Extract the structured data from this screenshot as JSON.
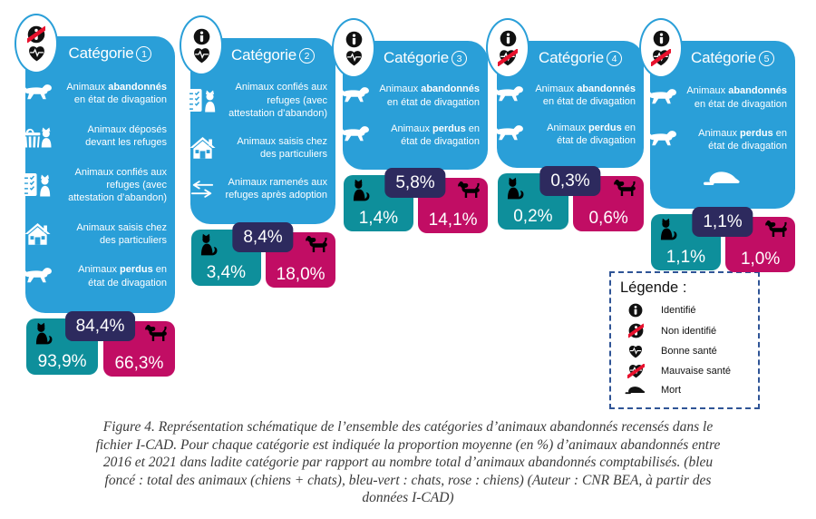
{
  "figure": {
    "caption_lines": [
      "Figure 4. Représentation schématique de l’ensemble des catégories d’animaux abandonnés recensés dans le",
      "fichier I-CAD. Pour chaque catégorie est indiquée la proportion moyenne (en %) d’animaux abandonnés entre",
      "2016 et 2021 dans ladite catégorie par rapport au nombre total d’animaux abandonnés comptabilisés. (bleu",
      "foncé : total des animaux (chiens + chats), bleu-vert : chats, rose : chiens) (Auteur : CNR BEA, à partir des",
      "données I-CAD)"
    ]
  },
  "colors": {
    "card_blue": "#2A9FD8",
    "cat_teal": "#0E8F9B",
    "dog_pink": "#C10D64",
    "total_navy": "#2D2A5E",
    "cross_red": "#E8112D",
    "legend_border": "#2F5496"
  },
  "stats": {
    "cat_icon": "sitting-cat-icon",
    "dog_icon": "dog-icon"
  },
  "legend": {
    "title": "Légende :",
    "items": [
      {
        "icon": "identified-icon",
        "label": "Identifié"
      },
      {
        "icon": "not-identified-icon",
        "label": "Non identifié"
      },
      {
        "icon": "good-health-icon",
        "label": "Bonne santé"
      },
      {
        "icon": "bad-health-icon",
        "label": "Mauvaise santé"
      },
      {
        "icon": "dead-animal-icon",
        "label": "Mort"
      }
    ]
  },
  "categories": [
    {
      "title_label": "Catégorie",
      "number": "1",
      "badge_icons": [
        "not-identified-icon",
        "good-health-icon"
      ],
      "items": [
        {
          "icon": "running-animal-icon",
          "runs": [
            {
              "t": "Animaux "
            },
            {
              "t": "abandonnés",
              "b": true
            },
            {
              "nl": true
            },
            {
              "t": "en état de divagation"
            }
          ]
        },
        {
          "icon": "basket-cat-icon",
          "runs": [
            {
              "t": "Animaux déposés"
            },
            {
              "nl": true
            },
            {
              "t": "devant les refuges"
            }
          ]
        },
        {
          "icon": "clipboard-cat-icon",
          "runs": [
            {
              "t": "Animaux confiés aux"
            },
            {
              "nl": true
            },
            {
              "t": "refuges (avec"
            },
            {
              "nl": true
            },
            {
              "t": "attestation d’abandon)"
            }
          ]
        },
        {
          "icon": "house-icon",
          "runs": [
            {
              "t": "Animaux saisis chez"
            },
            {
              "nl": true
            },
            {
              "t": "des particuliers"
            }
          ]
        },
        {
          "icon": "running-animal-icon",
          "runs": [
            {
              "t": "Animaux "
            },
            {
              "t": "perdus",
              "b": true
            },
            {
              "t": " en"
            },
            {
              "nl": true
            },
            {
              "t": "état de divagation"
            }
          ]
        }
      ],
      "total_pct": "84,4%",
      "cats_pct": "93,9%",
      "dogs_pct": "66,3%"
    },
    {
      "title_label": "Catégorie",
      "number": "2",
      "badge_icons": [
        "identified-icon",
        "good-health-icon"
      ],
      "items": [
        {
          "icon": "clipboard-cat-icon",
          "runs": [
            {
              "t": "Animaux confiés aux"
            },
            {
              "nl": true
            },
            {
              "t": "refuges (avec"
            },
            {
              "nl": true
            },
            {
              "t": "attestation d’abandon)"
            }
          ]
        },
        {
          "icon": "house-icon",
          "runs": [
            {
              "t": "Animaux saisis chez"
            },
            {
              "nl": true
            },
            {
              "t": "des particuliers"
            }
          ]
        },
        {
          "icon": "return-arrows-icon",
          "runs": [
            {
              "t": "Animaux ramenés aux"
            },
            {
              "nl": true
            },
            {
              "t": "refuges après adoption"
            }
          ]
        }
      ],
      "total_pct": "8,4%",
      "cats_pct": "3,4%",
      "dogs_pct": "18,0%"
    },
    {
      "title_label": "Catégorie",
      "number": "3",
      "badge_icons": [
        "identified-icon",
        "good-health-icon"
      ],
      "items": [
        {
          "icon": "running-animal-icon",
          "runs": [
            {
              "t": "Animaux "
            },
            {
              "t": "abandonnés",
              "b": true
            },
            {
              "nl": true
            },
            {
              "t": "en état de divagation"
            }
          ]
        },
        {
          "icon": "running-animal-icon",
          "runs": [
            {
              "t": "Animaux "
            },
            {
              "t": "perdus",
              "b": true
            },
            {
              "t": " en"
            },
            {
              "nl": true
            },
            {
              "t": "état de divagation"
            }
          ]
        }
      ],
      "total_pct": "5,8%",
      "cats_pct": "1,4%",
      "dogs_pct": "14,1%"
    },
    {
      "title_label": "Catégorie",
      "number": "4",
      "badge_icons": [
        "identified-icon",
        "bad-health-icon"
      ],
      "items": [
        {
          "icon": "running-animal-icon",
          "runs": [
            {
              "t": "Animaux "
            },
            {
              "t": "abandonnés",
              "b": true
            },
            {
              "nl": true
            },
            {
              "t": "en état de divagation"
            }
          ]
        },
        {
          "icon": "running-animal-icon",
          "runs": [
            {
              "t": "Animaux "
            },
            {
              "t": "perdus",
              "b": true
            },
            {
              "t": " en"
            },
            {
              "nl": true
            },
            {
              "t": "état de divagation"
            }
          ]
        }
      ],
      "total_pct": "0,3%",
      "cats_pct": "0,2%",
      "dogs_pct": "0,6%"
    },
    {
      "title_label": "Catégorie",
      "number": "5",
      "badge_icons": [
        "identified-icon",
        "bad-health-icon"
      ],
      "items": [
        {
          "icon": "running-animal-icon",
          "runs": [
            {
              "t": "Animaux "
            },
            {
              "t": "abandonnés",
              "b": true
            },
            {
              "nl": true
            },
            {
              "t": "en état de divagation"
            }
          ]
        },
        {
          "icon": "running-animal-icon",
          "runs": [
            {
              "t": "Animaux "
            },
            {
              "t": "perdus",
              "b": true
            },
            {
              "t": " en"
            },
            {
              "nl": true
            },
            {
              "t": "état de divagation"
            }
          ]
        },
        {
          "icon": "dead-animal-icon",
          "runs": []
        }
      ],
      "total_pct": "1,1%",
      "cats_pct": "1,1%",
      "dogs_pct": "1,0%"
    }
  ]
}
